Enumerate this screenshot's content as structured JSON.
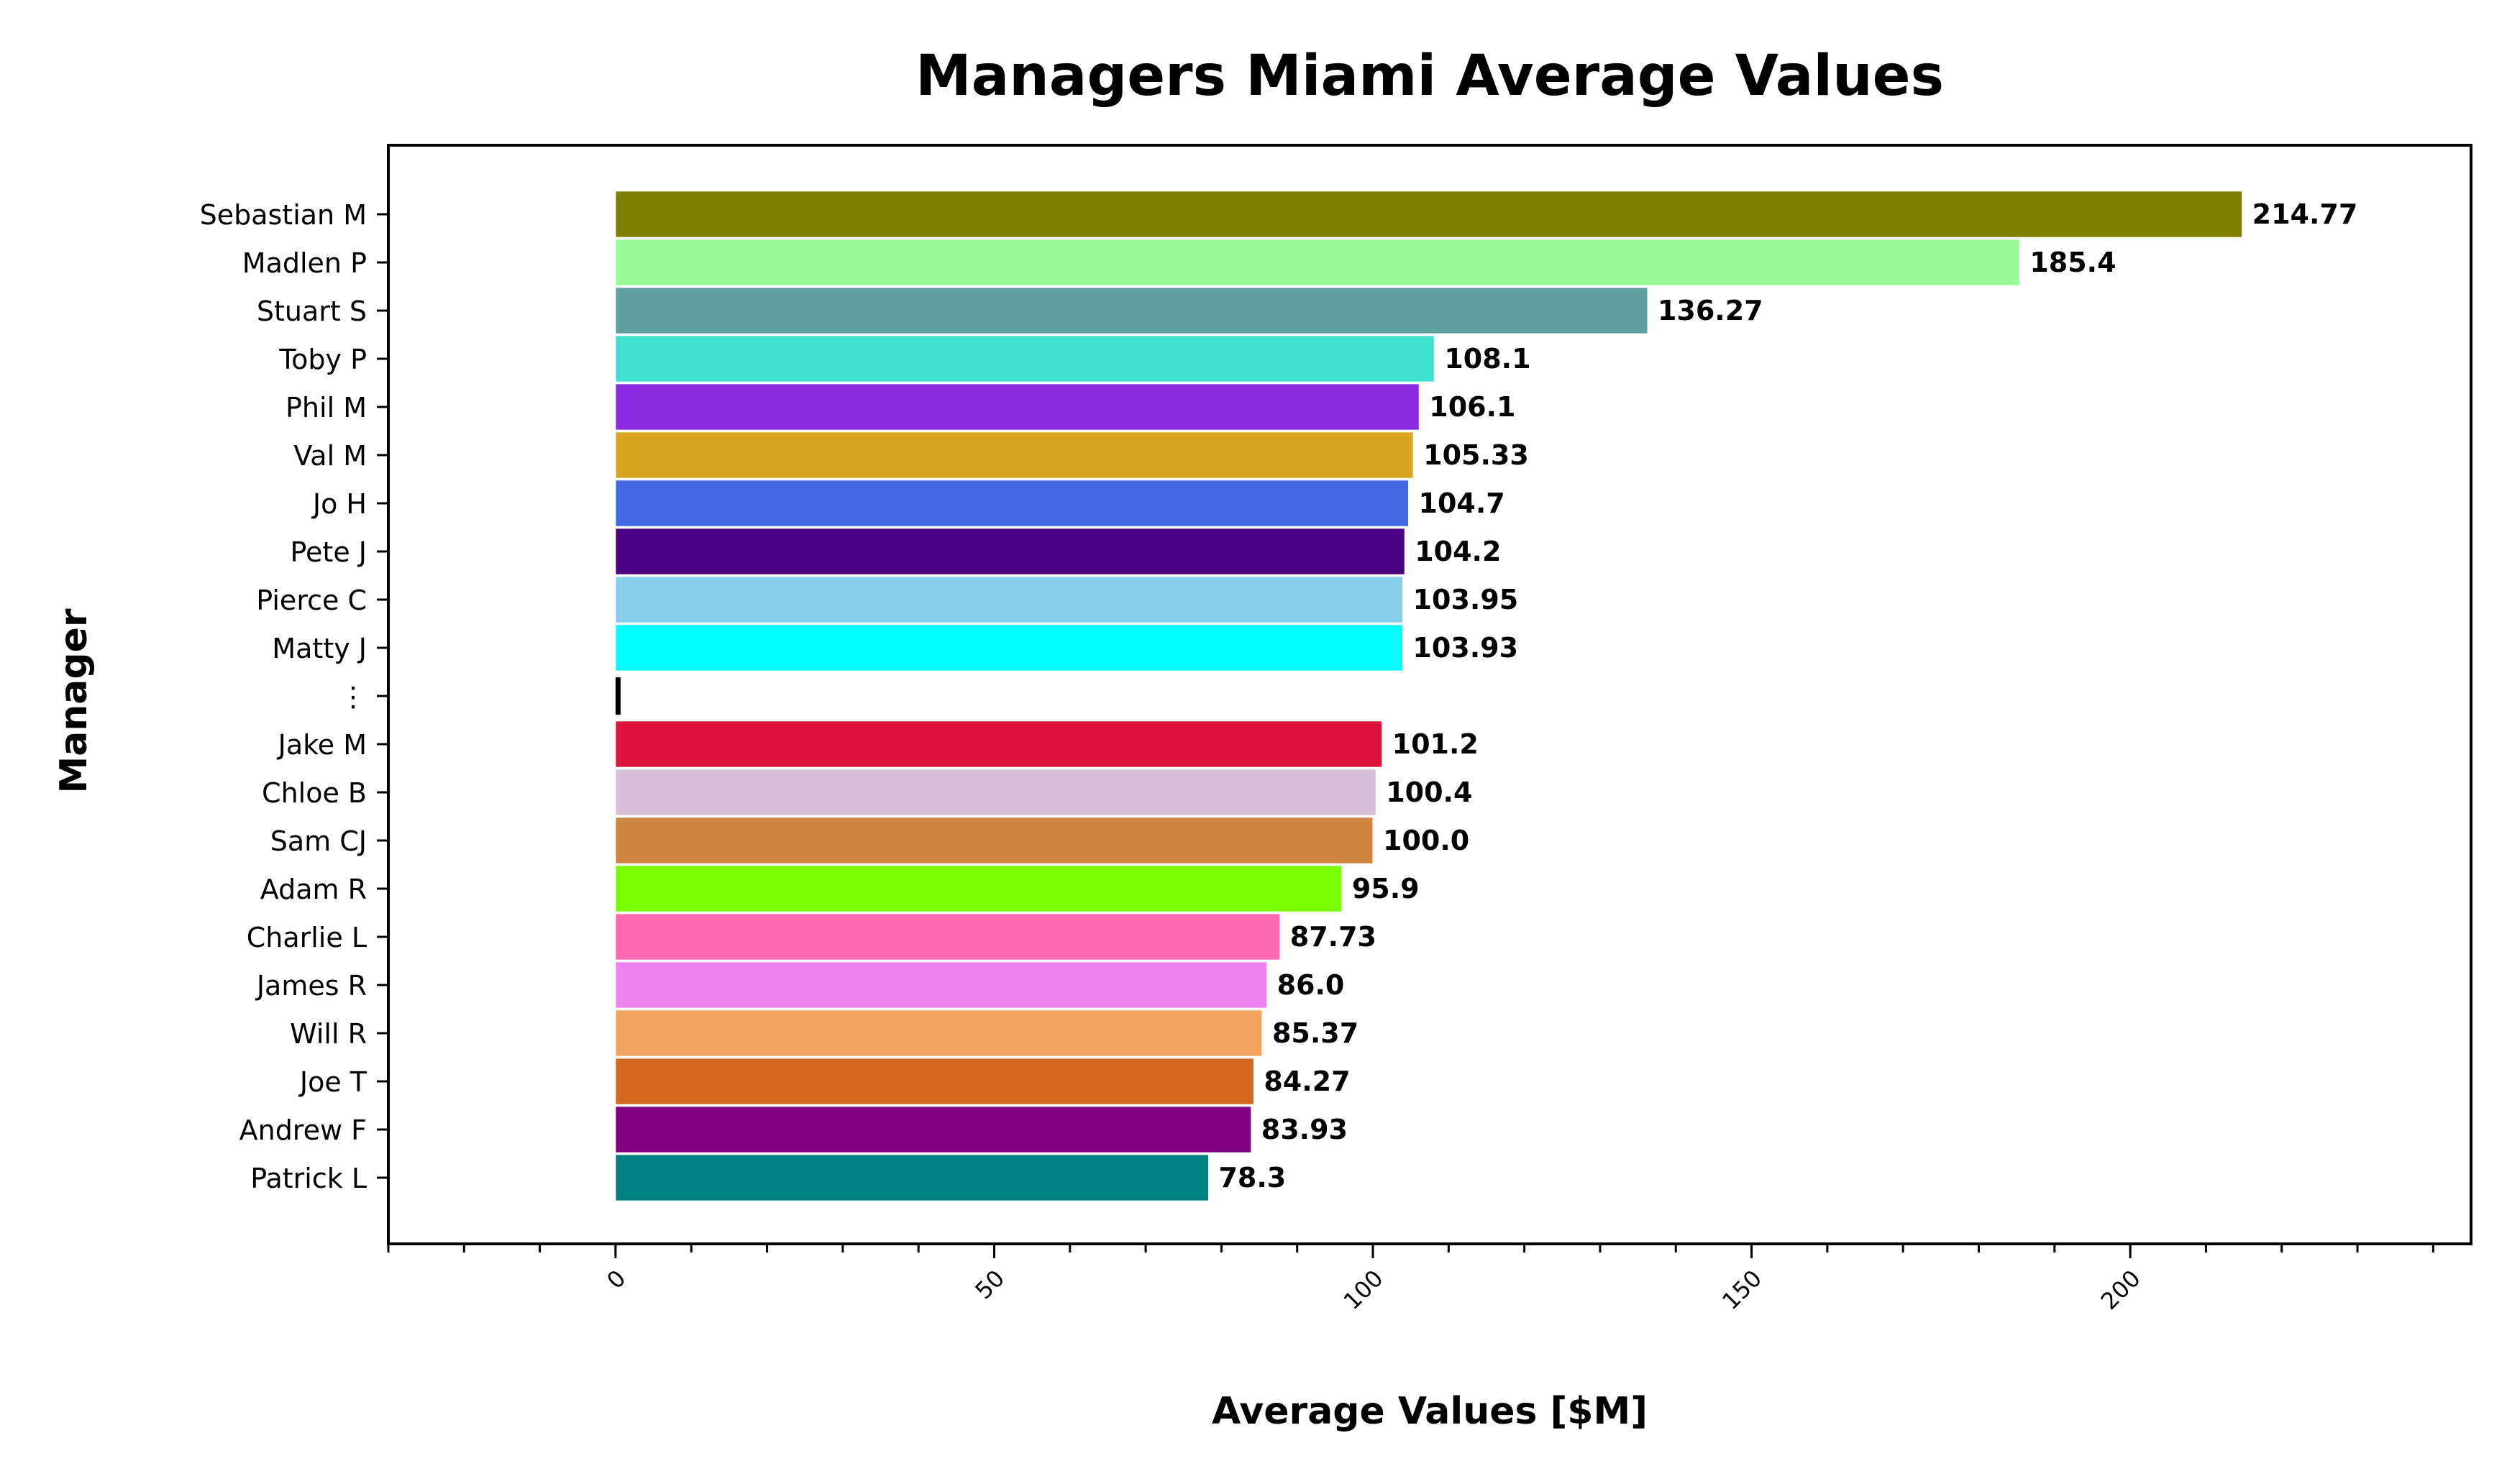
{
  "chart_data": {
    "type": "bar",
    "orientation": "horizontal",
    "title": "Managers Miami Average Values",
    "xlabel": "Average Values [$M]",
    "ylabel": "Manager",
    "xlim": [
      -30,
      245
    ],
    "x_ticks": [
      0,
      50,
      100,
      150,
      200
    ],
    "x_tick_labels": [
      "0",
      "50",
      "100",
      "150",
      "200"
    ],
    "x_minor_step": 10,
    "grid": false,
    "legend": "none",
    "categories": [
      "Sebastian M",
      "Madlen P",
      "Stuart S",
      "Toby P",
      "Phil M",
      "Val M",
      "Jo H",
      "Pete J",
      "Pierce C",
      "Matty J",
      "⋮",
      "Jake M",
      "Chloe B",
      "Sam CJ",
      "Adam R",
      "Charlie L",
      "James R",
      "Will R",
      "Joe T",
      "Andrew F",
      "Patrick L"
    ],
    "values": [
      214.77,
      185.4,
      136.27,
      108.1,
      106.1,
      105.33,
      104.7,
      104.2,
      103.95,
      103.93,
      null,
      101.2,
      100.4,
      100.0,
      95.9,
      87.73,
      86.0,
      85.37,
      84.27,
      83.93,
      78.3
    ],
    "value_labels": [
      "214.77",
      "185.4",
      "136.27",
      "108.1",
      "106.1",
      "105.33",
      "104.7",
      "104.2",
      "103.95",
      "103.93",
      "",
      "101.2",
      "100.4",
      "100.0",
      "95.9",
      "87.73",
      "86.0",
      "85.37",
      "84.27",
      "83.93",
      "78.3"
    ],
    "colors": [
      "#808000",
      "#98FB98",
      "#5F9EA0",
      "#40E0D0",
      "#8A2BE2",
      "#DAA520",
      "#4169E1",
      "#4B0082",
      "#87CEEB",
      "#00FFFF",
      "#000000",
      "#DC143C",
      "#D8BFD8",
      "#CD853F",
      "#7CFC00",
      "#FF69B4",
      "#EE82EE",
      "#F4A460",
      "#D2691E",
      "#800080",
      "#008080"
    ]
  }
}
